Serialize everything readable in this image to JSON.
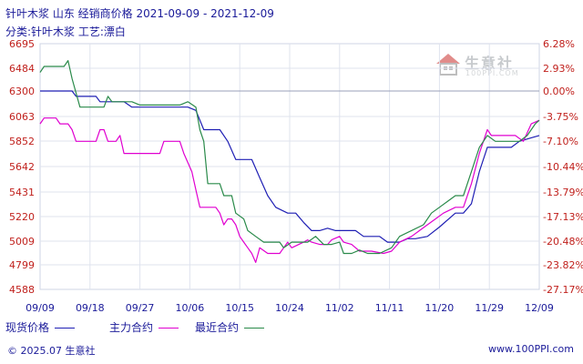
{
  "title": "针叶木浆 山东 经销商价格 2021-09-09 - 2021-12-09",
  "subtitle": "分类:针叶木浆 工艺:漂白",
  "logo": {
    "name": "生意社",
    "url": "100PPI.COM"
  },
  "legend": [
    {
      "label": "现货价格",
      "color": "#1f1fb4"
    },
    {
      "label": "主力合约",
      "color": "#e000d0"
    },
    {
      "label": "最近合约",
      "color": "#2a8a4a"
    }
  ],
  "footer": {
    "left": "© 2025.07 生意社",
    "right": "www.100PPI.com"
  },
  "chart_data": {
    "type": "line",
    "x_ticks": [
      "09/09",
      "09/18",
      "09/27",
      "10/06",
      "10/15",
      "10/24",
      "11/02",
      "11/11",
      "11/20",
      "11/29",
      "12/09"
    ],
    "y_left_ticks": [
      "6695",
      "6484",
      "6300",
      "6063",
      "5852",
      "5642",
      "5431",
      "5220",
      "5009",
      "4799",
      "4588"
    ],
    "y_right_ticks": [
      "6.28%",
      "2.93%",
      "0.00%",
      "-3.75%",
      "-7.10%",
      "-10.44%",
      "-13.79%",
      "-17.13%",
      "-20.48%",
      "-23.82%",
      "-27.17%"
    ],
    "ylim": [
      4588,
      6695
    ],
    "baseline": 6300,
    "series": [
      {
        "name": "现货价格",
        "color": "#1f1fb4",
        "points": [
          [
            0,
            6300
          ],
          [
            8,
            6300
          ],
          [
            9,
            6250
          ],
          [
            14,
            6250
          ],
          [
            15,
            6200
          ],
          [
            21,
            6200
          ],
          [
            23,
            6150
          ],
          [
            37,
            6150
          ],
          [
            39,
            6120
          ],
          [
            41,
            5950
          ],
          [
            45,
            5950
          ],
          [
            47,
            5850
          ],
          [
            49,
            5700
          ],
          [
            53,
            5700
          ],
          [
            55,
            5550
          ],
          [
            57,
            5400
          ],
          [
            59,
            5300
          ],
          [
            62,
            5250
          ],
          [
            64,
            5250
          ],
          [
            66,
            5170
          ],
          [
            68,
            5100
          ],
          [
            70,
            5100
          ],
          [
            72,
            5120
          ],
          [
            74,
            5100
          ],
          [
            79,
            5100
          ],
          [
            81,
            5050
          ],
          [
            85,
            5050
          ],
          [
            87,
            5000
          ],
          [
            90,
            5000
          ],
          [
            92,
            5030
          ],
          [
            94,
            5030
          ],
          [
            97,
            5050
          ],
          [
            100,
            5130
          ],
          [
            104,
            5250
          ],
          [
            106,
            5250
          ],
          [
            108,
            5330
          ],
          [
            110,
            5600
          ],
          [
            112,
            5800
          ],
          [
            118,
            5800
          ],
          [
            120,
            5850
          ],
          [
            123,
            5880
          ],
          [
            125,
            5900
          ]
        ]
      },
      {
        "name": "主力合约",
        "color": "#e000d0",
        "points": [
          [
            0,
            6000
          ],
          [
            1,
            6050
          ],
          [
            4,
            6050
          ],
          [
            5,
            6000
          ],
          [
            7,
            6000
          ],
          [
            8,
            5950
          ],
          [
            9,
            5850
          ],
          [
            14,
            5850
          ],
          [
            15,
            5950
          ],
          [
            16,
            5950
          ],
          [
            17,
            5850
          ],
          [
            19,
            5850
          ],
          [
            20,
            5900
          ],
          [
            21,
            5750
          ],
          [
            30,
            5750
          ],
          [
            31,
            5850
          ],
          [
            35,
            5850
          ],
          [
            36,
            5750
          ],
          [
            38,
            5600
          ],
          [
            39,
            5450
          ],
          [
            40,
            5300
          ],
          [
            42,
            5300
          ],
          [
            44,
            5300
          ],
          [
            45,
            5250
          ],
          [
            46,
            5150
          ],
          [
            47,
            5200
          ],
          [
            48,
            5200
          ],
          [
            49,
            5150
          ],
          [
            50,
            5050
          ],
          [
            51,
            5000
          ],
          [
            52,
            4950
          ],
          [
            53,
            4900
          ],
          [
            54,
            4820
          ],
          [
            55,
            4950
          ],
          [
            57,
            4900
          ],
          [
            59,
            4900
          ],
          [
            60,
            4900
          ],
          [
            61,
            4950
          ],
          [
            62,
            5000
          ],
          [
            63,
            4950
          ],
          [
            66,
            5000
          ],
          [
            67,
            5020
          ],
          [
            68,
            5000
          ],
          [
            70,
            4980
          ],
          [
            72,
            4980
          ],
          [
            73,
            5020
          ],
          [
            75,
            5050
          ],
          [
            76,
            5000
          ],
          [
            78,
            4980
          ],
          [
            80,
            4920
          ],
          [
            83,
            4920
          ],
          [
            86,
            4900
          ],
          [
            88,
            4920
          ],
          [
            90,
            5000
          ],
          [
            93,
            5050
          ],
          [
            95,
            5100
          ],
          [
            97,
            5150
          ],
          [
            99,
            5200
          ],
          [
            101,
            5250
          ],
          [
            104,
            5300
          ],
          [
            106,
            5300
          ],
          [
            108,
            5500
          ],
          [
            110,
            5750
          ],
          [
            112,
            5950
          ],
          [
            113,
            5900
          ],
          [
            115,
            5900
          ],
          [
            117,
            5900
          ],
          [
            119,
            5900
          ],
          [
            121,
            5850
          ],
          [
            123,
            6000
          ],
          [
            125,
            6030
          ]
        ]
      },
      {
        "name": "最近合约",
        "color": "#2a8a4a",
        "points": [
          [
            0,
            6450
          ],
          [
            1,
            6500
          ],
          [
            6,
            6500
          ],
          [
            7,
            6550
          ],
          [
            8,
            6400
          ],
          [
            10,
            6150
          ],
          [
            16,
            6150
          ],
          [
            17,
            6250
          ],
          [
            18,
            6200
          ],
          [
            20,
            6200
          ],
          [
            23,
            6200
          ],
          [
            25,
            6170
          ],
          [
            28,
            6170
          ],
          [
            35,
            6170
          ],
          [
            37,
            6200
          ],
          [
            39,
            6150
          ],
          [
            40,
            5950
          ],
          [
            41,
            5850
          ],
          [
            42,
            5500
          ],
          [
            45,
            5500
          ],
          [
            46,
            5400
          ],
          [
            48,
            5400
          ],
          [
            49,
            5250
          ],
          [
            51,
            5200
          ],
          [
            52,
            5100
          ],
          [
            54,
            5050
          ],
          [
            56,
            5000
          ],
          [
            58,
            5000
          ],
          [
            60,
            5000
          ],
          [
            61,
            4950
          ],
          [
            63,
            5000
          ],
          [
            66,
            5000
          ],
          [
            67,
            5000
          ],
          [
            69,
            5050
          ],
          [
            71,
            4980
          ],
          [
            73,
            4980
          ],
          [
            75,
            5000
          ],
          [
            76,
            4900
          ],
          [
            78,
            4900
          ],
          [
            80,
            4930
          ],
          [
            82,
            4900
          ],
          [
            85,
            4900
          ],
          [
            88,
            4950
          ],
          [
            90,
            5050
          ],
          [
            93,
            5100
          ],
          [
            96,
            5150
          ],
          [
            98,
            5250
          ],
          [
            100,
            5300
          ],
          [
            102,
            5350
          ],
          [
            104,
            5400
          ],
          [
            106,
            5400
          ],
          [
            108,
            5600
          ],
          [
            110,
            5800
          ],
          [
            112,
            5900
          ],
          [
            114,
            5850
          ],
          [
            117,
            5850
          ],
          [
            120,
            5850
          ],
          [
            122,
            5900
          ],
          [
            124,
            6000
          ],
          [
            125,
            6030
          ]
        ]
      }
    ],
    "x_max": 125
  }
}
